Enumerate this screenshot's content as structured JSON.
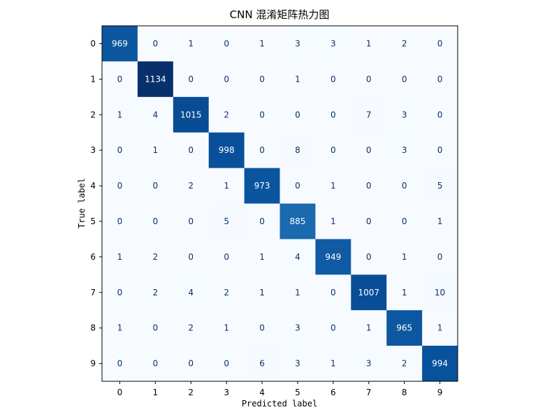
{
  "chart_data": {
    "type": "heatmap",
    "title": "CNN 混淆矩阵热力图",
    "xlabel": "Predicted label",
    "ylabel": "True label",
    "x_categories": [
      "0",
      "1",
      "2",
      "3",
      "4",
      "5",
      "6",
      "7",
      "8",
      "9"
    ],
    "y_categories": [
      "0",
      "1",
      "2",
      "3",
      "4",
      "5",
      "6",
      "7",
      "8",
      "9"
    ],
    "colormap": "Blues",
    "value_range": [
      0,
      1134
    ],
    "values": [
      [
        969,
        0,
        1,
        0,
        1,
        3,
        3,
        1,
        2,
        0
      ],
      [
        0,
        1134,
        0,
        0,
        0,
        1,
        0,
        0,
        0,
        0
      ],
      [
        1,
        4,
        1015,
        2,
        0,
        0,
        0,
        7,
        3,
        0
      ],
      [
        0,
        1,
        0,
        998,
        0,
        8,
        0,
        0,
        3,
        0
      ],
      [
        0,
        0,
        2,
        1,
        973,
        0,
        1,
        0,
        0,
        5
      ],
      [
        0,
        0,
        0,
        5,
        0,
        885,
        1,
        0,
        0,
        1
      ],
      [
        1,
        2,
        0,
        0,
        1,
        4,
        949,
        0,
        1,
        0
      ],
      [
        0,
        2,
        4,
        2,
        1,
        1,
        0,
        1007,
        1,
        10
      ],
      [
        1,
        0,
        2,
        1,
        0,
        3,
        0,
        1,
        965,
        1
      ],
      [
        0,
        0,
        0,
        0,
        6,
        3,
        1,
        3,
        2,
        994
      ]
    ],
    "grid": false,
    "colors": {
      "low": "#f7fbff",
      "high": "#08306b",
      "text_dark": "#08306b",
      "text_light": "#ffffff"
    }
  }
}
